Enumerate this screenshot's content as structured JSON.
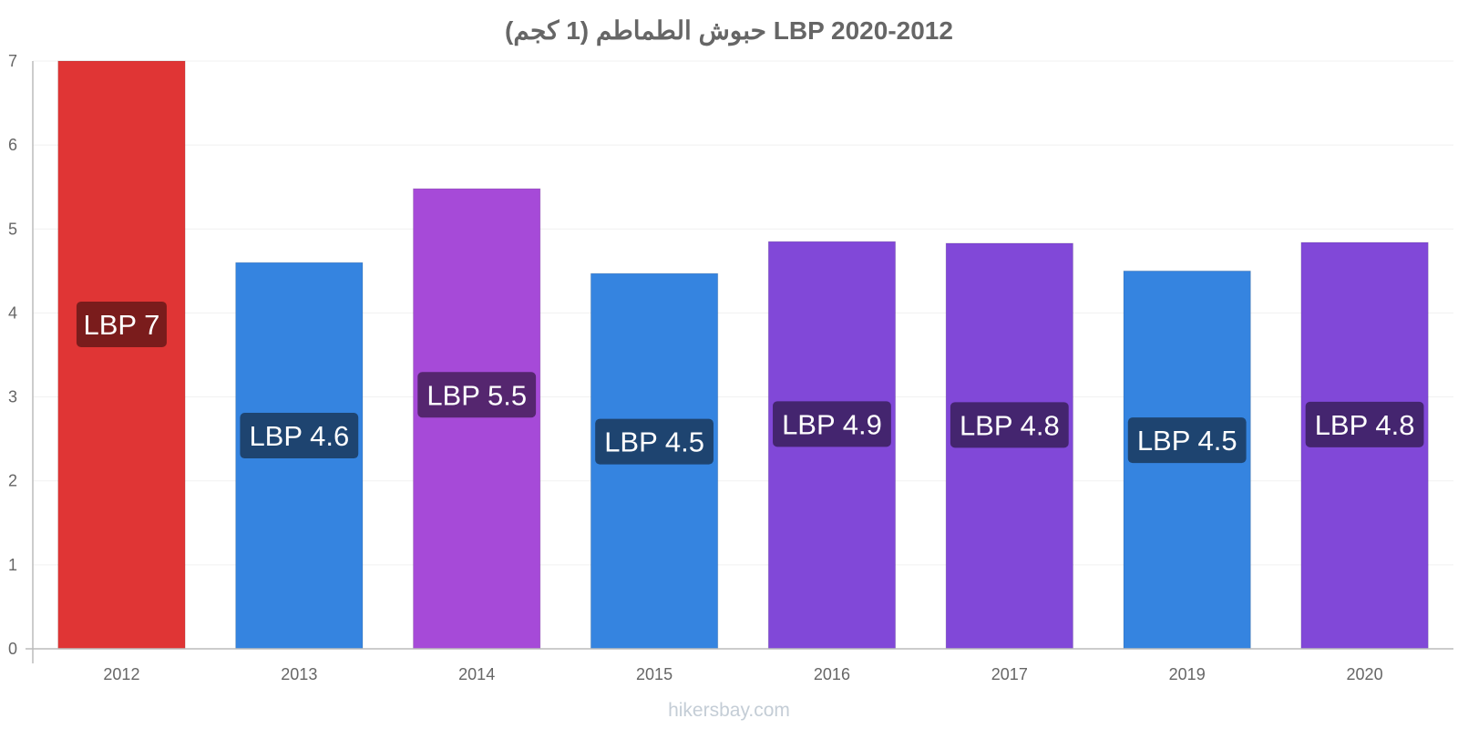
{
  "chart_data": {
    "type": "bar",
    "title": "حبوش الطماطم (1 كجم) LBP 2020-2012",
    "categories": [
      "2012",
      "2013",
      "2014",
      "2015",
      "2016",
      "2017",
      "2019",
      "2020"
    ],
    "values": [
      7.0,
      4.6,
      5.48,
      4.47,
      4.85,
      4.83,
      4.5,
      4.84
    ],
    "data_labels": [
      "LBP 7",
      "LBP 4.6",
      "LBP 5.5",
      "LBP 4.5",
      "LBP 4.9",
      "LBP 4.8",
      "LBP 4.5",
      "LBP 4.8"
    ],
    "bar_colors": [
      "#e03535",
      "#3584e0",
      "#a64ad8",
      "#3584e0",
      "#8148d8",
      "#8148d8",
      "#3584e0",
      "#8148d8"
    ],
    "label_colors": [
      "#7a1c1c",
      "#1e4470",
      "#55266f",
      "#1e4470",
      "#44256f",
      "#44256f",
      "#1e4470",
      "#44256f"
    ],
    "yticks": [
      "0",
      "1",
      "2",
      "3",
      "4",
      "5",
      "6",
      "7"
    ],
    "ylim": [
      0,
      7
    ],
    "xlabel": "",
    "ylabel": "",
    "grid": true,
    "legend": "none"
  },
  "source": "hikersbay.com"
}
